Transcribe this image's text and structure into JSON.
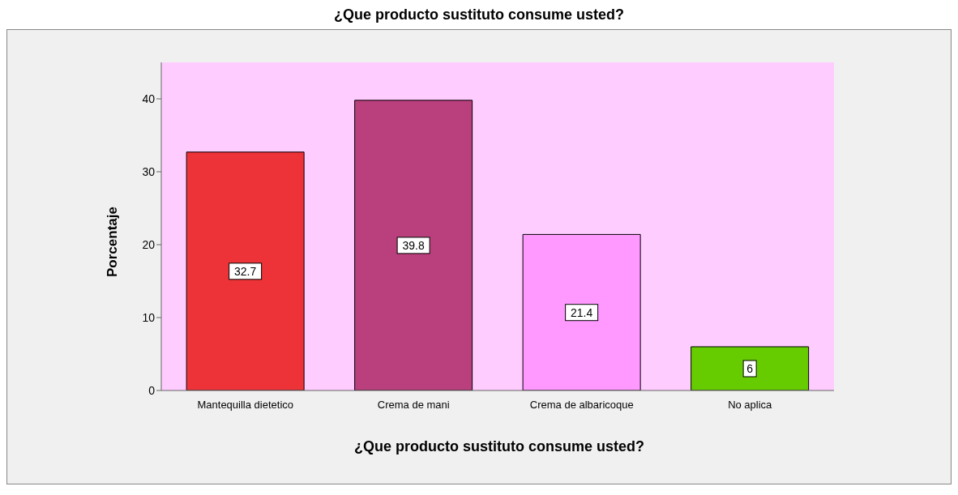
{
  "chart_data": {
    "type": "bar",
    "title": "¿Que producto sustituto consume usted?",
    "xlabel": "¿Que producto sustituto consume usted?",
    "ylabel": "Porcentaje",
    "categories": [
      "Mantequilla dietetico",
      "Crema de mani",
      "Crema de albaricoque",
      "No aplica"
    ],
    "values": [
      32.7,
      39.8,
      21.4,
      6
    ],
    "colors": [
      "#ee3338",
      "#b93f7d",
      "#ff99ff",
      "#66cc00"
    ],
    "ylim": [
      0,
      45
    ],
    "yticks": [
      0,
      10,
      20,
      30,
      40
    ],
    "data_labels": true,
    "grid": false,
    "legend": false
  }
}
